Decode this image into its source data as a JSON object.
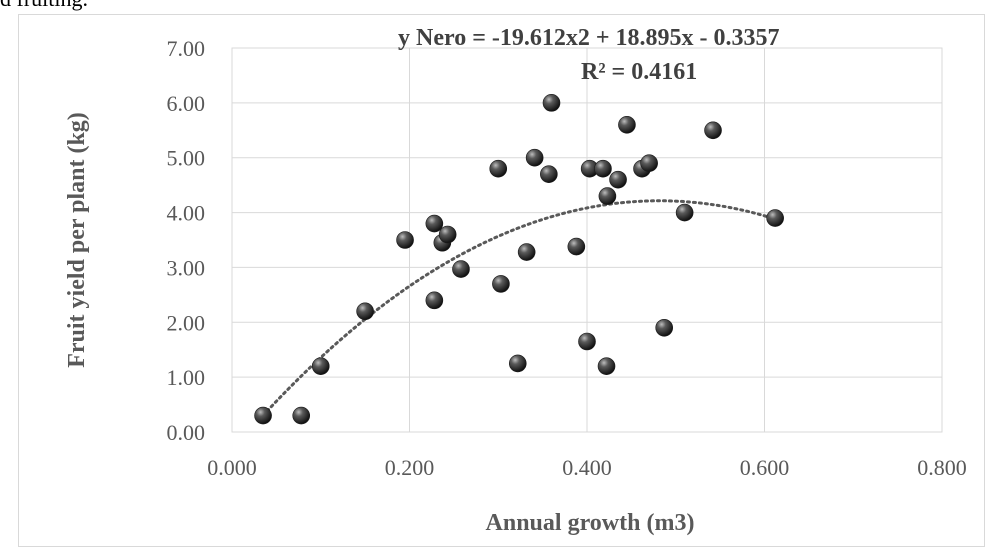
{
  "caption_fragment": "d fruiting.",
  "chart_data": {
    "type": "scatter",
    "title": "",
    "xlabel": "Annual growth (m3)",
    "ylabel": "Fruit yield per plant (kg)",
    "xlim": [
      0,
      0.8
    ],
    "ylim": [
      0,
      7
    ],
    "x_ticks": [
      "0.000",
      "0.200",
      "0.400",
      "0.600",
      "0.800"
    ],
    "y_ticks": [
      "0.00",
      "1.00",
      "2.00",
      "3.00",
      "4.00",
      "5.00",
      "6.00",
      "7.00"
    ],
    "grid": true,
    "trendline": {
      "type": "polynomial-2",
      "equation": "y Nero = -19.612x2 + 18.895x - 0.3357",
      "r_squared": "R² = 0.4161",
      "coefficients": [
        -19.612,
        18.895,
        -0.3357
      ],
      "x_range": [
        0.035,
        0.612
      ]
    },
    "series": [
      {
        "marker_color": "#3a3a3a",
        "points": [
          [
            0.035,
            0.3
          ],
          [
            0.078,
            0.3
          ],
          [
            0.1,
            1.2
          ],
          [
            0.15,
            2.2
          ],
          [
            0.195,
            3.5
          ],
          [
            0.228,
            2.4
          ],
          [
            0.228,
            3.8
          ],
          [
            0.237,
            3.45
          ],
          [
            0.243,
            3.6
          ],
          [
            0.258,
            2.97
          ],
          [
            0.3,
            4.8
          ],
          [
            0.303,
            2.7
          ],
          [
            0.322,
            1.25
          ],
          [
            0.332,
            3.28
          ],
          [
            0.341,
            5.0
          ],
          [
            0.357,
            4.7
          ],
          [
            0.36,
            6.0
          ],
          [
            0.388,
            3.38
          ],
          [
            0.4,
            1.65
          ],
          [
            0.403,
            4.8
          ],
          [
            0.418,
            4.8
          ],
          [
            0.422,
            1.2
          ],
          [
            0.423,
            4.3
          ],
          [
            0.435,
            4.6
          ],
          [
            0.445,
            5.6
          ],
          [
            0.462,
            4.8
          ],
          [
            0.47,
            4.9
          ],
          [
            0.487,
            1.9
          ],
          [
            0.51,
            4.0
          ],
          [
            0.542,
            5.5
          ],
          [
            0.612,
            3.9
          ]
        ]
      }
    ]
  }
}
